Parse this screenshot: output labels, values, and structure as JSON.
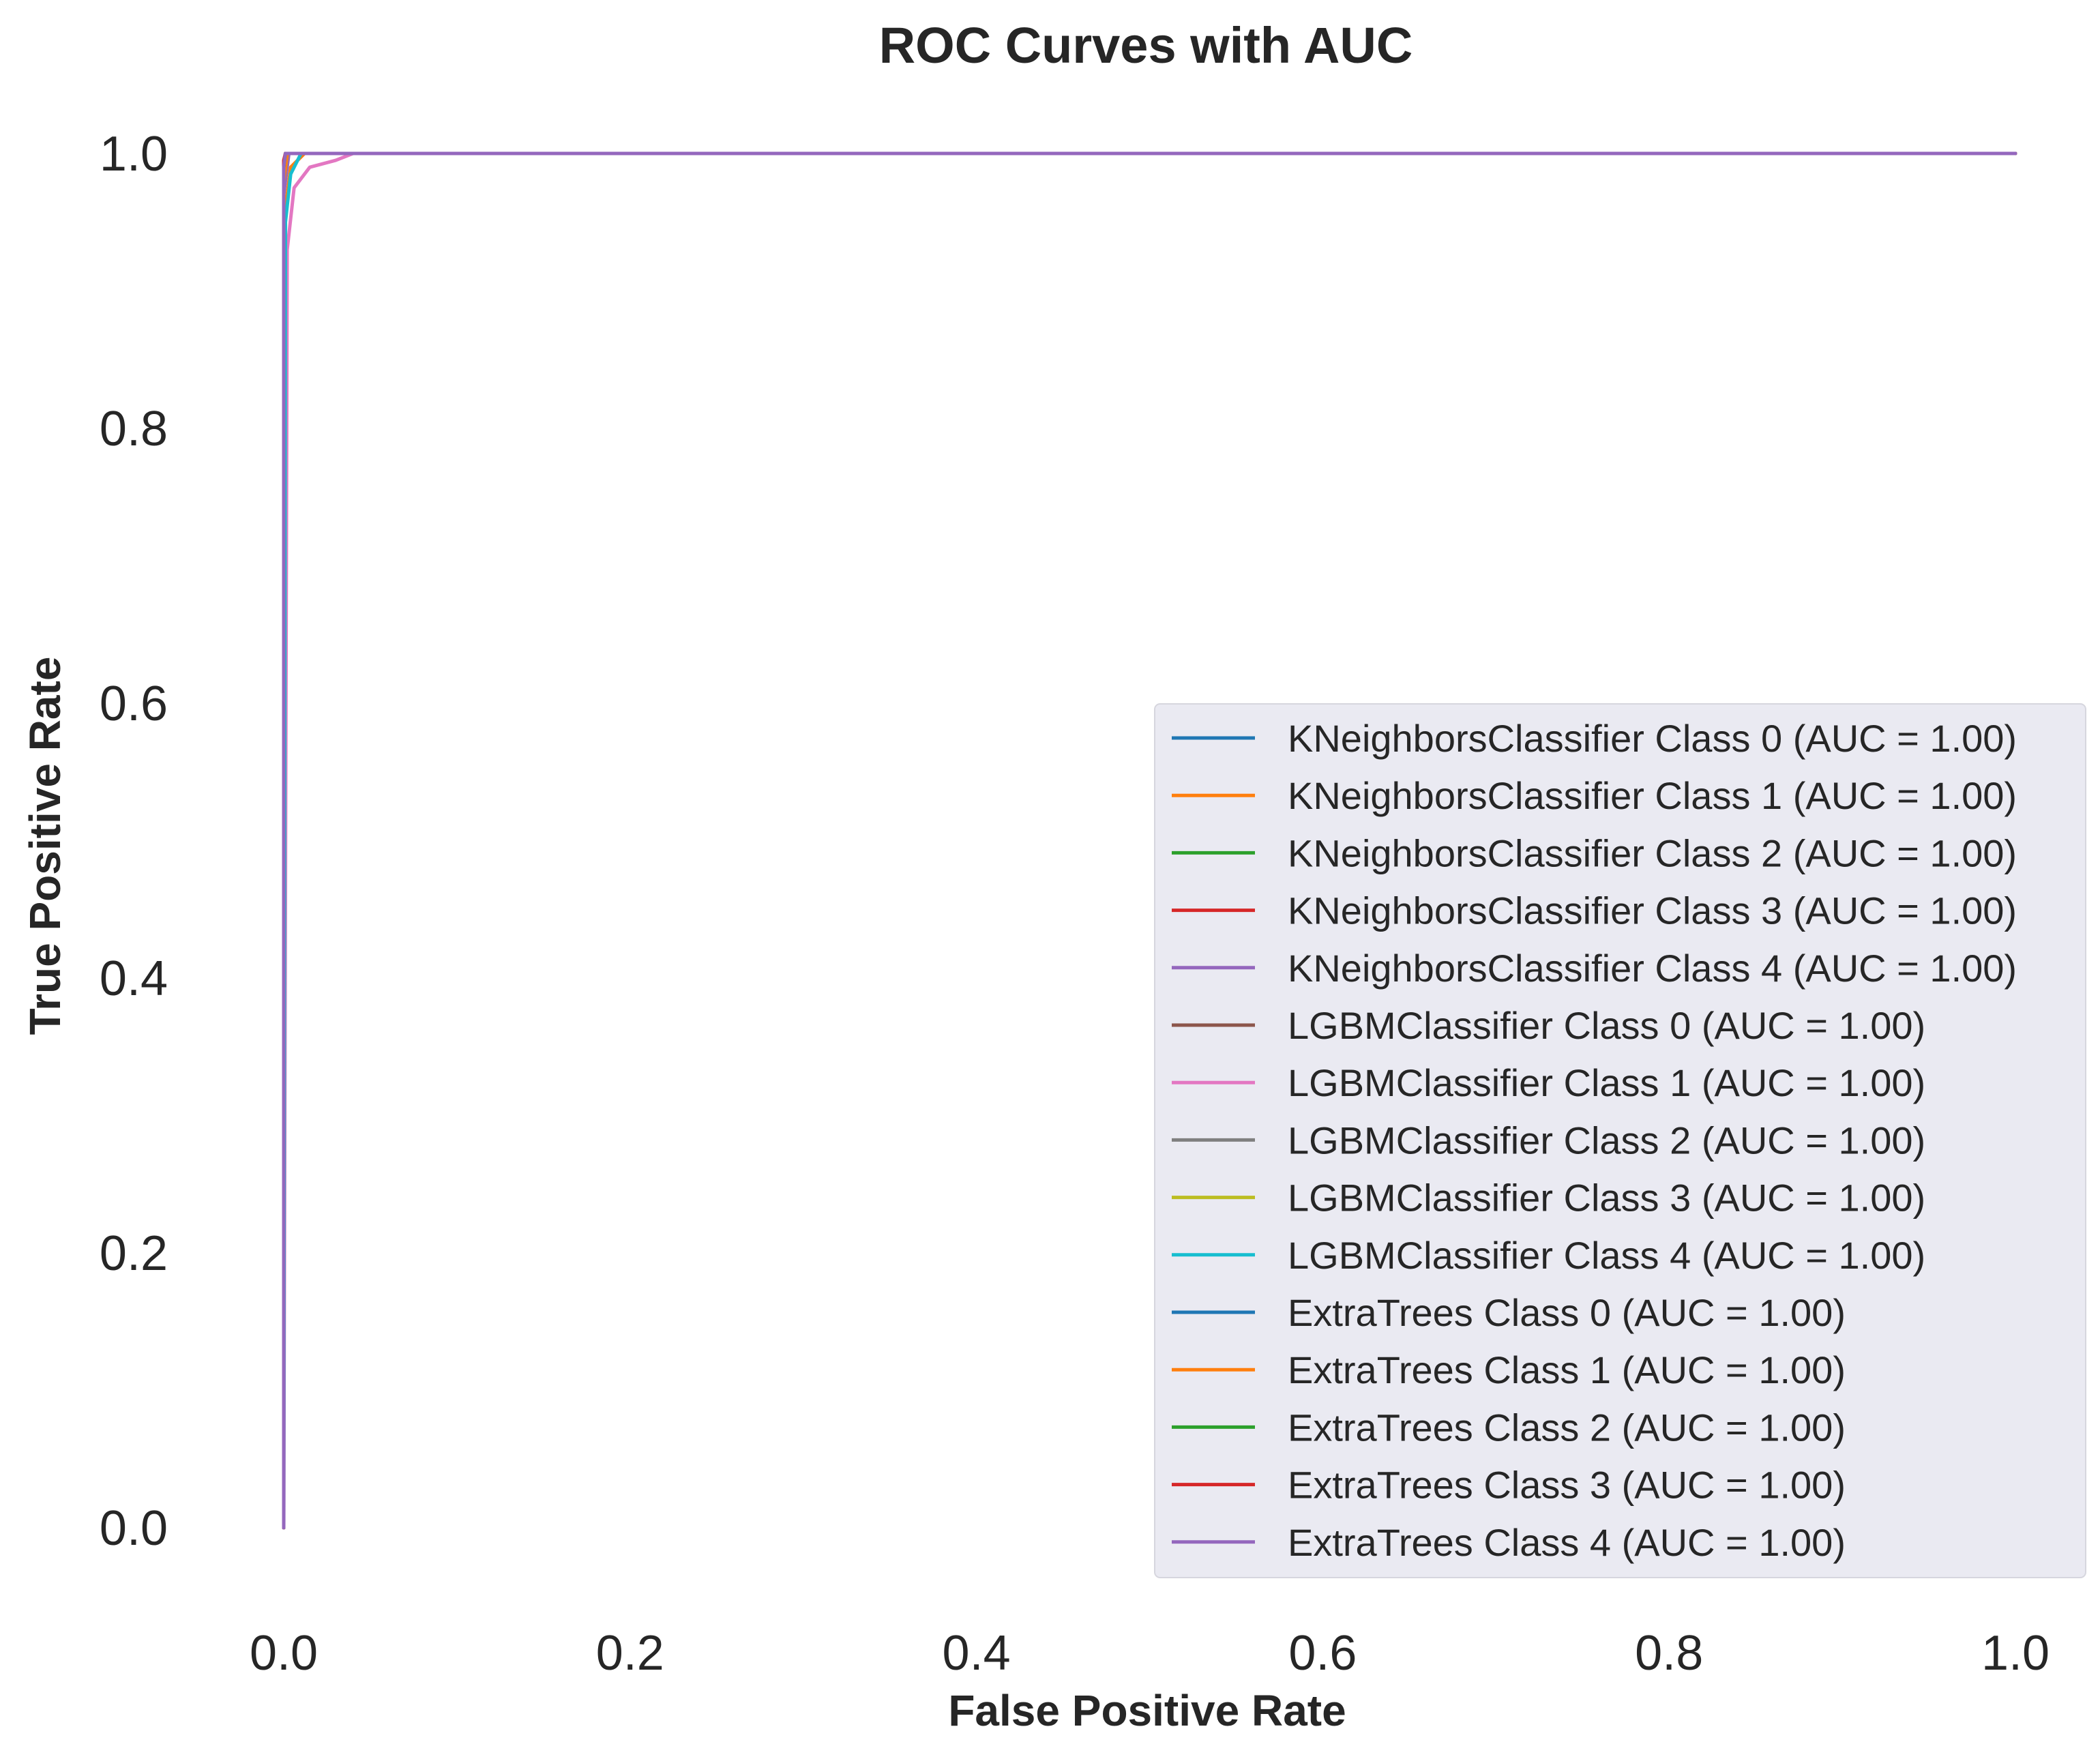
{
  "chart_data": {
    "type": "line",
    "title": "ROC Curves with AUC",
    "xlabel": "False Positive Rate",
    "ylabel": "True Positive Rate",
    "xlim": [
      0,
      1
    ],
    "ylim": [
      0,
      1
    ],
    "xticks": [
      "0.0",
      "0.2",
      "0.4",
      "0.6",
      "0.8",
      "1.0"
    ],
    "yticks": [
      "0.0",
      "0.2",
      "0.4",
      "0.6",
      "0.8",
      "1.0"
    ],
    "grid": false,
    "legend_position": "lower-right",
    "series": [
      {
        "name": "KNeighborsClassifier Class 0 (AUC = 1.00)",
        "color": "#1f77b4",
        "x": [
          0,
          0,
          0.002,
          1
        ],
        "y": [
          0,
          0.97,
          1.0,
          1.0
        ]
      },
      {
        "name": "KNeighborsClassifier Class 1 (AUC = 1.00)",
        "color": "#ff7f0e",
        "x": [
          0,
          0,
          0.004,
          0.012,
          1
        ],
        "y": [
          0,
          0.95,
          0.99,
          1.0,
          1.0
        ]
      },
      {
        "name": "KNeighborsClassifier Class 2 (AUC = 1.00)",
        "color": "#2ca02c",
        "x": [
          0,
          0,
          0.002,
          1
        ],
        "y": [
          0,
          0.98,
          1.0,
          1.0
        ]
      },
      {
        "name": "KNeighborsClassifier Class 3 (AUC = 1.00)",
        "color": "#d62728",
        "x": [
          0,
          0,
          0.001,
          1
        ],
        "y": [
          0,
          0.99,
          1.0,
          1.0
        ]
      },
      {
        "name": "KNeighborsClassifier Class 4 (AUC = 1.00)",
        "color": "#9467bd",
        "x": [
          0,
          0,
          0.003,
          1
        ],
        "y": [
          0,
          0.97,
          1.0,
          1.0
        ]
      },
      {
        "name": "LGBMClassifier Class 0 (AUC = 1.00)",
        "color": "#8c564b",
        "x": [
          0,
          0,
          0.001,
          1
        ],
        "y": [
          0,
          0.99,
          1.0,
          1.0
        ]
      },
      {
        "name": "LGBMClassifier Class 1 (AUC = 1.00)",
        "color": "#e377c2",
        "x": [
          0,
          0.002,
          0.006,
          0.015,
          0.03,
          0.04,
          1
        ],
        "y": [
          0,
          0.93,
          0.975,
          0.99,
          0.995,
          1.0,
          1.0
        ]
      },
      {
        "name": "LGBMClassifier Class 2 (AUC = 1.00)",
        "color": "#7f7f7f",
        "x": [
          0,
          0,
          0.002,
          1
        ],
        "y": [
          0,
          0.98,
          1.0,
          1.0
        ]
      },
      {
        "name": "LGBMClassifier Class 3 (AUC = 1.00)",
        "color": "#bcbd22",
        "x": [
          0,
          0,
          0.002,
          1
        ],
        "y": [
          0,
          0.98,
          1.0,
          1.0
        ]
      },
      {
        "name": "LGBMClassifier Class 4 (AUC = 1.00)",
        "color": "#17becf",
        "x": [
          0,
          0.001,
          0.004,
          0.01,
          1
        ],
        "y": [
          0,
          0.95,
          0.985,
          1.0,
          1.0
        ]
      },
      {
        "name": "ExtraTrees Class 0 (AUC = 1.00)",
        "color": "#1f77b4",
        "x": [
          0,
          0,
          0.001,
          1
        ],
        "y": [
          0,
          0.99,
          1.0,
          1.0
        ]
      },
      {
        "name": "ExtraTrees Class 1 (AUC = 1.00)",
        "color": "#ff7f0e",
        "x": [
          0,
          0,
          0.002,
          1
        ],
        "y": [
          0,
          0.98,
          1.0,
          1.0
        ]
      },
      {
        "name": "ExtraTrees Class 2 (AUC = 1.00)",
        "color": "#2ca02c",
        "x": [
          0,
          0,
          0.001,
          1
        ],
        "y": [
          0,
          0.99,
          1.0,
          1.0
        ]
      },
      {
        "name": "ExtraTrees Class 3 (AUC = 1.00)",
        "color": "#d62728",
        "x": [
          0,
          0,
          0.001,
          1
        ],
        "y": [
          0,
          0.995,
          1.0,
          1.0
        ]
      },
      {
        "name": "ExtraTrees Class 4 (AUC = 1.00)",
        "color": "#9467bd",
        "x": [
          0,
          0,
          0.001,
          1
        ],
        "y": [
          0,
          0.99,
          1.0,
          1.0
        ]
      }
    ]
  }
}
